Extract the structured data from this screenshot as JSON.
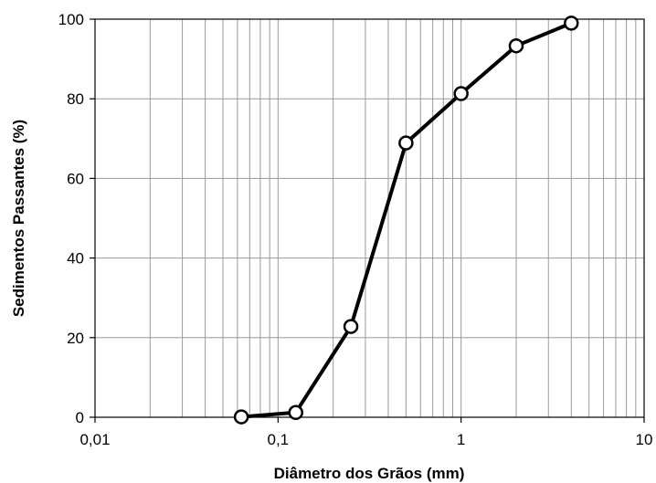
{
  "chart_data": {
    "type": "line",
    "title": "",
    "xlabel": "Diâmetro dos Grãos (mm)",
    "ylabel": "Sedimentos Passantes (%)",
    "x_scale": "log",
    "xlim": [
      0.01,
      10
    ],
    "ylim": [
      0,
      100
    ],
    "x_ticks": [
      0.01,
      0.1,
      1,
      10
    ],
    "x_tick_labels": [
      "0,01",
      "0,1",
      "1",
      "10"
    ],
    "y_ticks": [
      0,
      20,
      40,
      60,
      80,
      100
    ],
    "y_tick_labels": [
      "0",
      "20",
      "40",
      "60",
      "80",
      "100"
    ],
    "grid": true,
    "legend": "none",
    "series": [
      {
        "x": [
          0.063,
          0.125,
          0.25,
          0.5,
          1,
          2,
          4
        ],
        "y": [
          0.1,
          1.2,
          22.8,
          68.9,
          81.3,
          93.3,
          99.0
        ],
        "color": "#000000",
        "marker": "circle-open"
      }
    ]
  }
}
